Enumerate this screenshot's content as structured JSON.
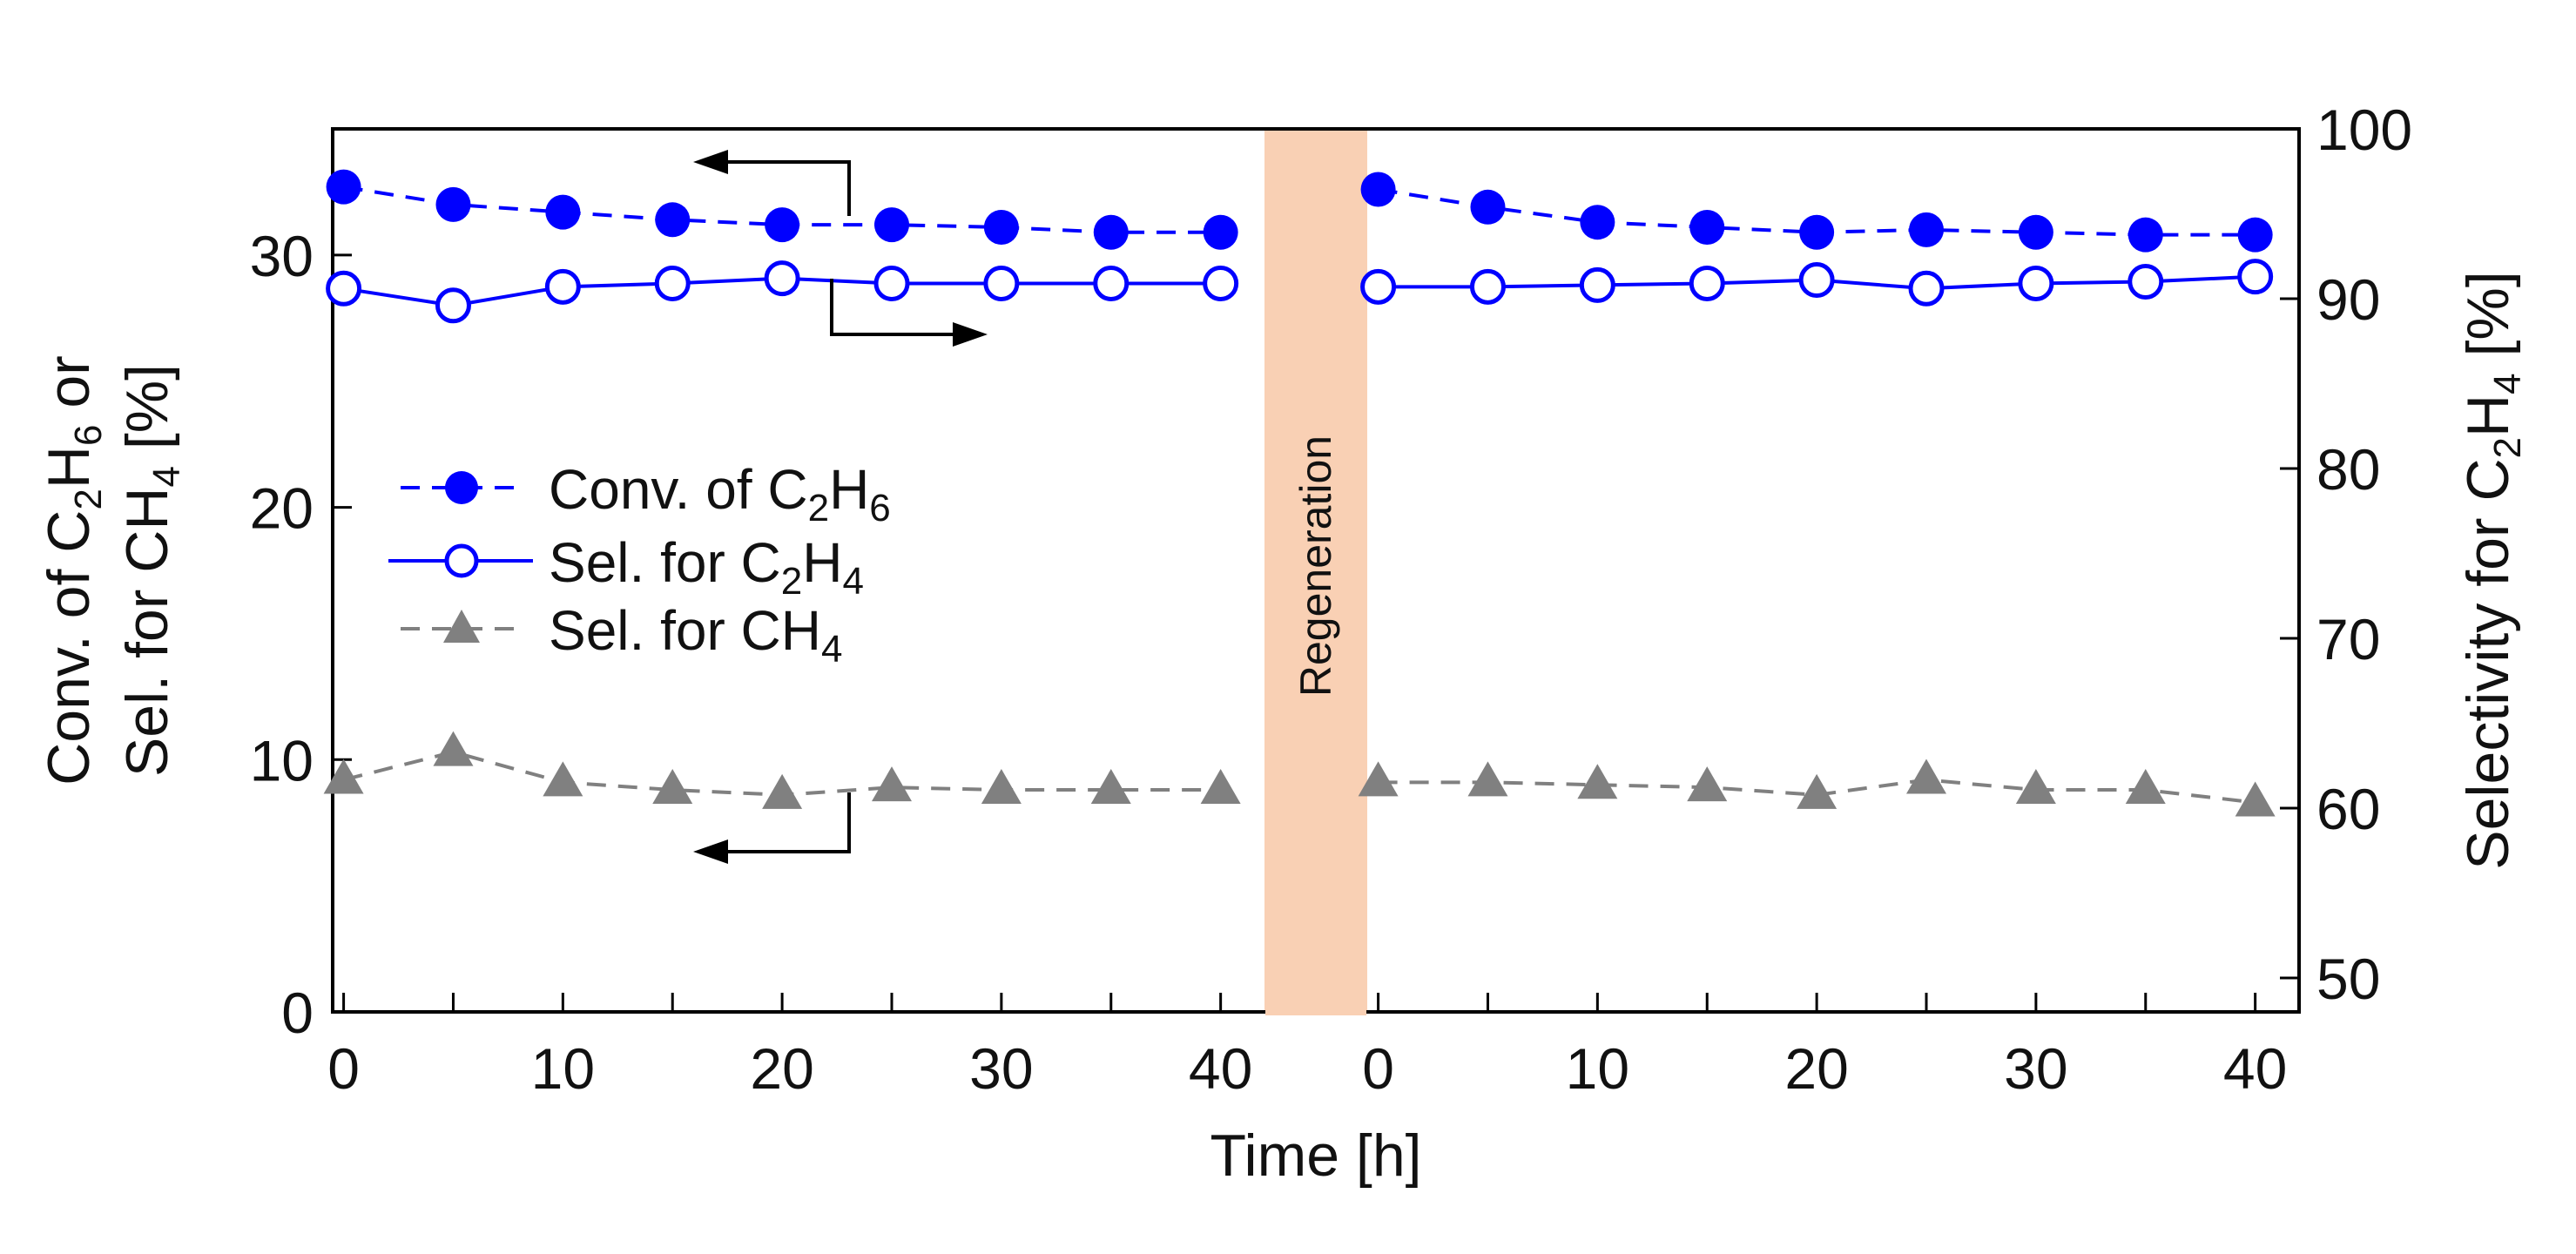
{
  "chart_data": {
    "type": "line",
    "title": "",
    "xlabel": "Time [h]",
    "ylabel_left": {
      "l1_a": "Conv. of C",
      "l1_s1": "2",
      "l1_b": "H",
      "l1_s2": "6",
      "l1_c": " or",
      "l2_a": "Sel. for CH",
      "l2_s1": "4",
      "l2_b": " [%]"
    },
    "ylabel_right": {
      "a": "Selectivity for C",
      "s1": "2",
      "b": "H",
      "s2": "4",
      "c": " [%]"
    },
    "ylim_left": [
      0,
      35
    ],
    "ylim_right": [
      48,
      100
    ],
    "yticks_left": [
      "0",
      "10",
      "20",
      "30"
    ],
    "yticks_right": [
      "50",
      "60",
      "70",
      "80",
      "90",
      "100"
    ],
    "segments": [
      {
        "name": "before regeneration",
        "xlim": [
          -0.5,
          42
        ],
        "xticks": [
          "0",
          "10",
          "20",
          "30",
          "40"
        ]
      },
      {
        "name": "after regeneration",
        "xlim": [
          -0.5,
          42
        ],
        "xticks": [
          "0",
          "10",
          "20",
          "30",
          "40"
        ]
      }
    ],
    "x": [
      0,
      5,
      10,
      15,
      20,
      25,
      30,
      35,
      40
    ],
    "regeneration_label": "Regeneration",
    "series": [
      {
        "name": "Conv. of C2H6",
        "legend": {
          "a": "Conv. of C",
          "s1": "2",
          "b": "H",
          "s2": "6"
        },
        "axis": "left",
        "color": "#0000ff",
        "marker": "filled-circle",
        "line": "dashed",
        "segments": [
          [
            32.7,
            32.0,
            31.7,
            31.4,
            31.2,
            31.2,
            31.1,
            30.9,
            30.9
          ],
          [
            32.6,
            31.9,
            31.3,
            31.1,
            30.9,
            31.0,
            30.9,
            30.8,
            30.8
          ]
        ]
      },
      {
        "name": "Sel. for C2H4",
        "legend": {
          "a": "Sel. for C",
          "s1": "2",
          "b": "H",
          "s2": "4"
        },
        "axis": "right",
        "color": "#0000ff",
        "marker": "open-circle",
        "line": "solid",
        "segments": [
          [
            90.6,
            89.6,
            90.7,
            90.9,
            91.2,
            90.9,
            90.9,
            90.9,
            90.9
          ],
          [
            90.7,
            90.7,
            90.8,
            90.9,
            91.1,
            90.6,
            90.9,
            91.0,
            91.3
          ]
        ]
      },
      {
        "name": "Sel. for CH4",
        "legend": {
          "a": "Sel. for CH",
          "s1": "4",
          "b": "",
          "s2": ""
        },
        "axis": "left",
        "color": "#808080",
        "marker": "filled-triangle",
        "line": "dashed",
        "segments": [
          [
            9.2,
            10.3,
            9.1,
            8.8,
            8.6,
            8.9,
            8.8,
            8.8,
            8.8
          ],
          [
            9.1,
            9.1,
            9.0,
            8.9,
            8.6,
            9.2,
            8.8,
            8.8,
            8.3
          ]
        ]
      }
    ],
    "colors": {
      "regeneration_band": "#f9d0b4",
      "axis": "#000000"
    }
  }
}
